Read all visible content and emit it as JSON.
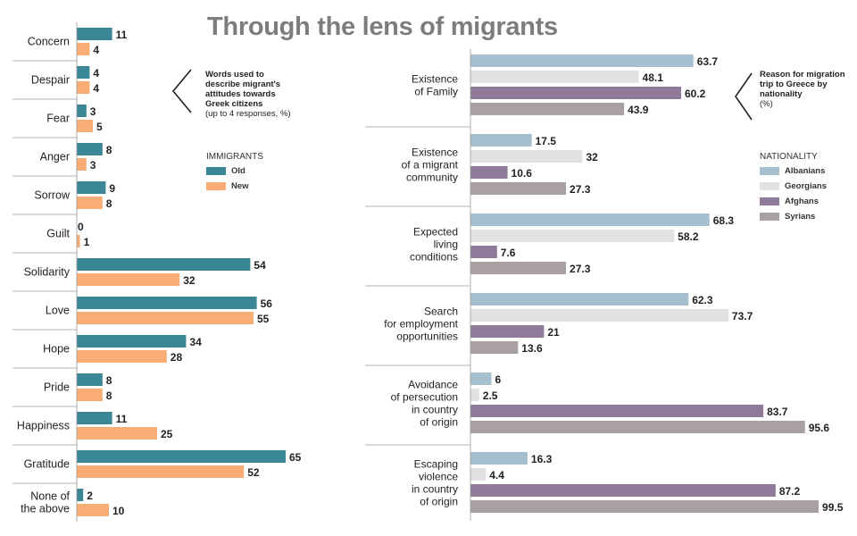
{
  "title": "Through the lens of migrants",
  "chart_data": [
    {
      "type": "bar",
      "orientation": "horizontal",
      "note": {
        "title": "Words used to describe migrant's attitudes towards Greek citizens",
        "subtitle": "(up to 4 responses, %)"
      },
      "legend_title": "IMMIGRANTS",
      "categories": [
        "Concern",
        "Despair",
        "Fear",
        "Anger",
        "Sorrow",
        "Guilt",
        "Solidarity",
        "Love",
        "Hope",
        "Pride",
        "Happiness",
        "Gratitude",
        "None of the above"
      ],
      "series": [
        {
          "name": "Old",
          "color": "#3a8596",
          "values": [
            11,
            4,
            3,
            8,
            9,
            0,
            54,
            56,
            34,
            8,
            11,
            65,
            2
          ]
        },
        {
          "name": "New",
          "color": "#f7ad74",
          "values": [
            4,
            4,
            5,
            3,
            8,
            1,
            32,
            55,
            28,
            8,
            25,
            52,
            10
          ]
        }
      ],
      "xlim": [
        0,
        70
      ]
    },
    {
      "type": "bar",
      "orientation": "horizontal",
      "note": {
        "title": "Reason for migration trip to Greece by nationality",
        "subtitle": "(%)"
      },
      "legend_title": "NATIONALITY",
      "categories": [
        "Existence of Family",
        "Existence of a migrant community",
        "Expected living conditions",
        "Search for employment opportunities",
        "Avoidance of persecution in country of origin",
        "Escaping violence in country of origin"
      ],
      "series": [
        {
          "name": "Albanians",
          "color": "#a5bfce",
          "values": [
            63.7,
            17.5,
            68.3,
            62.3,
            6,
            16.3
          ]
        },
        {
          "name": "Georgians",
          "color": "#e2e2e4",
          "values": [
            48.1,
            32,
            58.2,
            73.7,
            2.5,
            4.4
          ]
        },
        {
          "name": "Afghans",
          "color": "#8f7a9a",
          "values": [
            60.2,
            10.6,
            7.6,
            21,
            83.7,
            87.2
          ]
        },
        {
          "name": "Syrians",
          "color": "#a9a0a1",
          "values": [
            43.9,
            27.3,
            27.3,
            13.6,
            95.6,
            99.5
          ]
        }
      ],
      "value_labels": [
        [
          "63.7",
          "17.5",
          "68.3",
          "62.3",
          "6",
          "16.3"
        ],
        [
          "48.1",
          "32",
          "58.2",
          "73.7",
          "2.5",
          "4.4"
        ],
        [
          "60.2",
          "10.6",
          "7.6",
          "21",
          "83.7",
          "87.2"
        ],
        [
          "43.9",
          "27.3",
          "27.3",
          "13.6",
          "95.6",
          "99.5"
        ]
      ],
      "xlim": [
        0,
        100
      ]
    }
  ]
}
